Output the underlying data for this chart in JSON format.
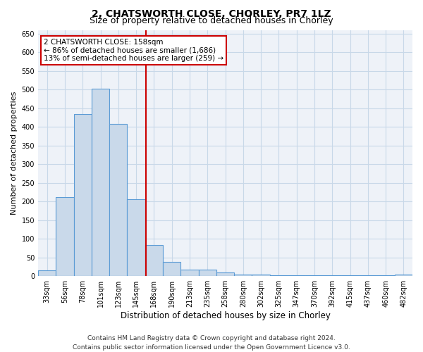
{
  "title": "2, CHATSWORTH CLOSE, CHORLEY, PR7 1LZ",
  "subtitle": "Size of property relative to detached houses in Chorley",
  "xlabel": "Distribution of detached houses by size in Chorley",
  "ylabel": "Number of detached properties",
  "categories": [
    "33sqm",
    "56sqm",
    "78sqm",
    "101sqm",
    "123sqm",
    "145sqm",
    "168sqm",
    "190sqm",
    "213sqm",
    "235sqm",
    "258sqm",
    "280sqm",
    "302sqm",
    "325sqm",
    "347sqm",
    "370sqm",
    "392sqm",
    "415sqm",
    "437sqm",
    "460sqm",
    "482sqm"
  ],
  "values": [
    15,
    212,
    435,
    502,
    408,
    207,
    84,
    38,
    18,
    18,
    10,
    5,
    4,
    3,
    3,
    3,
    3,
    3,
    2,
    2,
    4
  ],
  "bar_color": "#c9d9ea",
  "bar_edge_color": "#5b9bd5",
  "bar_linewidth": 0.8,
  "grid_color": "#c8d8e8",
  "background_color": "#ffffff",
  "plot_bg_color": "#eef2f8",
  "marker_label": "2 CHATSWORTH CLOSE: 158sqm",
  "annotation_line1": "← 86% of detached houses are smaller (1,686)",
  "annotation_line2": "13% of semi-detached houses are larger (259) →",
  "annotation_box_color": "#ffffff",
  "annotation_box_edge": "#cc0000",
  "marker_line_color": "#cc0000",
  "footer_line1": "Contains HM Land Registry data © Crown copyright and database right 2024.",
  "footer_line2": "Contains public sector information licensed under the Open Government Licence v3.0.",
  "ylim": [
    0,
    660
  ],
  "title_fontsize": 10,
  "subtitle_fontsize": 9,
  "xlabel_fontsize": 8.5,
  "ylabel_fontsize": 8,
  "tick_fontsize": 7,
  "footer_fontsize": 6.5,
  "ann_fontsize": 7.5
}
